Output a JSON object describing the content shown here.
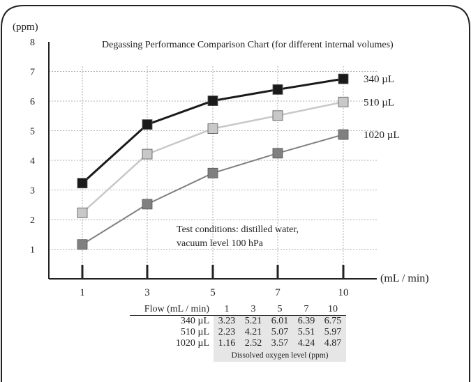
{
  "chart_data": {
    "type": "line",
    "title": "Degassing Performance Comparison Chart (for different internal volumes)",
    "ylabel": "(ppm)",
    "xlabel": "(mL / min)",
    "ylim": [
      0,
      8
    ],
    "yticks": [
      "1",
      "2",
      "3",
      "4",
      "5",
      "6",
      "7",
      "8"
    ],
    "categories": [
      "1",
      "3",
      "5",
      "7",
      "10"
    ],
    "grid": true,
    "series": [
      {
        "name": "340 µL",
        "values": [
          3.23,
          5.21,
          6.01,
          6.39,
          6.75
        ],
        "color": "#1a1a1a"
      },
      {
        "name": "510 µL",
        "values": [
          2.23,
          4.21,
          5.07,
          5.51,
          5.97
        ],
        "color": "#c8c8c8"
      },
      {
        "name": "1020 µL",
        "values": [
          1.16,
          2.52,
          3.57,
          4.24,
          4.87
        ],
        "color": "#808080"
      }
    ],
    "annotation": [
      "Test conditions: distilled water,",
      "vacuum level 100 hPa"
    ]
  },
  "table": {
    "header_label": "Flow (mL / min)",
    "columns": [
      "1",
      "3",
      "5",
      "7",
      "10"
    ],
    "rows": [
      {
        "label": "340 µL",
        "values": [
          "3.23",
          "5.21",
          "6.01",
          "6.39",
          "6.75"
        ]
      },
      {
        "label": "510 µL",
        "values": [
          "2.23",
          "4.21",
          "5.07",
          "5.51",
          "5.97"
        ]
      },
      {
        "label": "1020 µL",
        "values": [
          "1.16",
          "2.52",
          "3.57",
          "4.24",
          "4.87"
        ]
      }
    ],
    "footer": "Dissolved oxygen level (ppm)"
  }
}
